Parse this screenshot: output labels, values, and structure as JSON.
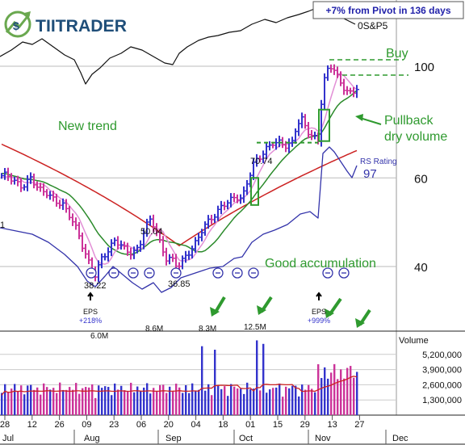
{
  "brand": {
    "logo_text": "TIITRADER"
  },
  "header_badge": "+7% from Pivot in 136 days",
  "chart_data": {
    "type": "candlestick",
    "index_label": "0S&P5",
    "price_axis": {
      "labels": [
        "100",
        "60",
        "40"
      ],
      "values": [
        100,
        60,
        40
      ],
      "range": [
        30,
        120
      ],
      "scale": "log"
    },
    "volume_axis": {
      "title": "Volume",
      "labels": [
        "5,200,000",
        "3,900,000",
        "2,600,000",
        "1,300,000"
      ],
      "values": [
        5200000,
        3900000,
        2600000,
        1300000
      ],
      "range": [
        0,
        6500000
      ]
    },
    "x_day_labels": [
      "28",
      "12",
      "26",
      "09",
      "23",
      "06",
      "20",
      "04",
      "18",
      "01",
      "15",
      "29",
      "13",
      "27"
    ],
    "x_month_labels": [
      "Jul",
      "Aug",
      "Sep",
      "Oct",
      "Nov",
      "Dec"
    ],
    "annotations": {
      "buy": "Buy",
      "new_trend": "New trend",
      "pullback": "Pullback\ndry volume",
      "good_accumulation": "Good accumulation",
      "rs_rating_title": "RS Rating",
      "rs_rating_value": "97",
      "pivot_price": "70.74",
      "swing_high": "50.04",
      "swing_low_1": "38.22",
      "swing_low_2": "36.85",
      "partial_left_label": "1",
      "eps_label": "EPS",
      "eps_1_change": "+218%",
      "eps_2_change": "+999%",
      "vol_label_1": "6.0M",
      "vol_label_2": "8.6M",
      "vol_label_3": "8.3M",
      "vol_label_4": "12.5M"
    },
    "colors": {
      "up_bar": "#3333cc",
      "down_bar": "#cc3399",
      "ma_short": "#e28fd6",
      "ma_mid": "#2a8a2a",
      "ma_long": "#cc2222",
      "rs_line": "#3333aa",
      "index_line": "#111111",
      "annotation_green": "#2f9a2f",
      "pivot_dash": "#2f9a2f"
    }
  }
}
